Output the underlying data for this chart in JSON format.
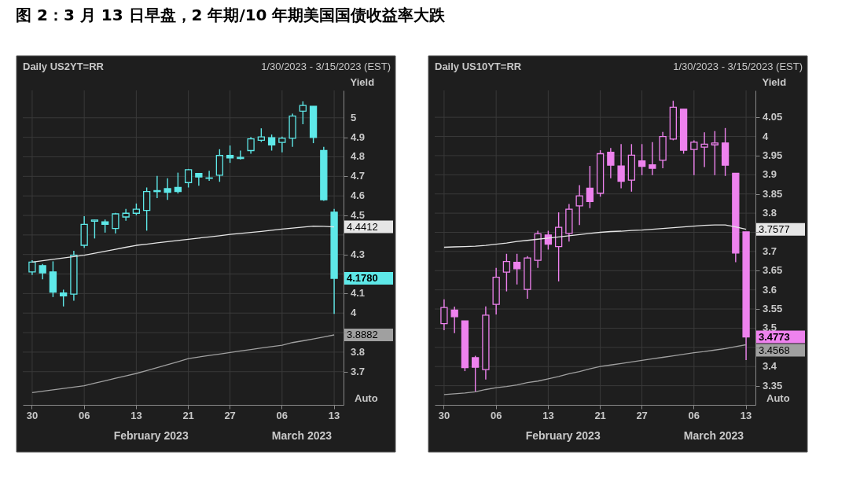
{
  "chart_data": [
    {
      "type": "candlestick",
      "title": "Daily US2YT=RR",
      "subtitle": "1/30/2023 - 3/15/2023 (EST)",
      "ylabel": "Yield",
      "color": "#5ee8e8",
      "grid": true,
      "categories": [
        "30",
        null,
        null,
        null,
        null,
        "06",
        null,
        null,
        null,
        null,
        "13",
        null,
        null,
        null,
        null,
        "21",
        null,
        null,
        null,
        "27",
        null,
        null,
        null,
        null,
        "06",
        null,
        null,
        null,
        null,
        "13"
      ],
      "ylim": [
        3.53,
        5.14
      ],
      "yticks": [
        3.7,
        3.8,
        {
          "value": 3.9,
          "label": null
        },
        4,
        4.1,
        {
          "value": 4.2,
          "label": null
        },
        4.3,
        {
          "value": 4.4,
          "label": null
        },
        4.5,
        4.6,
        4.7,
        4.8,
        4.9,
        5
      ],
      "ohlc": [
        [
          4.211,
          4.271,
          4.195,
          4.261
        ],
        [
          4.243,
          4.251,
          4.173,
          4.206
        ],
        [
          4.211,
          4.265,
          4.082,
          4.107
        ],
        [
          4.103,
          4.12,
          4.034,
          4.088
        ],
        [
          4.097,
          4.319,
          4.063,
          4.296
        ],
        [
          4.347,
          4.496,
          4.334,
          4.454
        ],
        [
          4.47,
          4.477,
          4.382,
          4.476
        ],
        [
          4.467,
          4.479,
          4.412,
          4.454
        ],
        [
          4.433,
          4.513,
          4.407,
          4.508
        ],
        [
          4.492,
          4.533,
          4.473,
          4.511
        ],
        [
          4.511,
          4.561,
          4.501,
          4.532
        ],
        [
          4.526,
          4.643,
          4.422,
          4.622
        ],
        [
          4.627,
          4.702,
          4.589,
          4.622
        ],
        [
          4.637,
          4.69,
          4.58,
          4.618
        ],
        [
          4.643,
          4.719,
          4.612,
          4.622
        ],
        [
          4.668,
          4.738,
          4.643,
          4.734
        ],
        [
          4.715,
          4.715,
          4.652,
          4.697
        ],
        [
          4.692,
          4.728,
          4.677,
          4.69
        ],
        [
          4.706,
          4.839,
          4.672,
          4.807
        ],
        [
          4.807,
          4.858,
          4.769,
          4.794
        ],
        [
          4.797,
          4.832,
          4.786,
          4.791
        ],
        [
          4.832,
          4.902,
          4.816,
          4.892
        ],
        [
          4.885,
          4.946,
          4.876,
          4.902
        ],
        [
          4.898,
          4.914,
          4.832,
          4.861
        ],
        [
          4.874,
          4.904,
          4.823,
          4.895
        ],
        [
          4.895,
          5.021,
          4.851,
          5.009
        ],
        [
          5.034,
          5.084,
          4.967,
          5.063
        ],
        [
          5.059,
          5.059,
          4.87,
          4.899
        ],
        [
          4.832,
          4.851,
          4.574,
          4.58
        ],
        [
          4.517,
          4.533,
          3.996,
          4.178
        ]
      ],
      "series": [
        {
          "type": "line",
          "color": "#e6e6e6",
          "values": [
            4.261,
            4.268,
            4.275,
            4.282,
            4.289,
            4.296,
            4.306,
            4.316,
            4.326,
            4.337,
            4.347,
            4.353,
            4.36,
            4.366,
            4.372,
            4.378,
            4.384,
            4.39,
            4.396,
            4.403,
            4.408,
            4.413,
            4.418,
            4.424,
            4.43,
            4.435,
            4.44,
            4.445,
            4.444,
            4.4412
          ]
        },
        {
          "type": "line",
          "color": "#a0a0a0",
          "values": [
            3.593,
            3.6,
            3.607,
            3.614,
            3.621,
            3.628,
            3.641,
            3.653,
            3.666,
            3.678,
            3.691,
            3.706,
            3.721,
            3.736,
            3.751,
            3.767,
            3.775,
            3.783,
            3.79,
            3.798,
            3.806,
            3.813,
            3.821,
            3.828,
            3.835,
            3.849,
            3.858,
            3.868,
            3.878,
            3.8882
          ]
        }
      ],
      "annotations": [
        "图 2：3 月 13 日早盘，2 年期/10 年期美国国债收益率大跌",
        "February 2023",
        "March 2023",
        "Auto",
        "4.4412",
        "4.1780",
        "3.8882"
      ]
    },
    {
      "type": "candlestick",
      "title": "Daily US10YT=RR",
      "subtitle": "1/30/2023 - 3/15/2023 (EST)",
      "ylabel": "Yield",
      "color": "#ee82ee",
      "grid": true,
      "categories": [
        "30",
        null,
        null,
        null,
        null,
        "06",
        null,
        null,
        null,
        null,
        "13",
        null,
        null,
        null,
        null,
        "21",
        null,
        null,
        null,
        "27",
        null,
        null,
        null,
        null,
        "06",
        null,
        null,
        null,
        null,
        "13"
      ],
      "ylim": [
        3.3,
        4.12
      ],
      "yticks": [
        3.35,
        3.4,
        {
          "value": 3.45,
          "label": null
        },
        3.5,
        3.55,
        3.6,
        3.65,
        3.7,
        {
          "value": 3.75,
          "label": null
        },
        3.8,
        3.85,
        3.9,
        3.95,
        4,
        4.05
      ],
      "ohlc": [
        [
          3.512,
          3.575,
          3.495,
          3.554
        ],
        [
          3.547,
          3.556,
          3.487,
          3.53
        ],
        [
          3.519,
          3.519,
          3.388,
          3.397
        ],
        [
          3.423,
          3.428,
          3.335,
          3.398
        ],
        [
          3.392,
          3.557,
          3.366,
          3.534
        ],
        [
          3.562,
          3.657,
          3.536,
          3.633
        ],
        [
          3.646,
          3.694,
          3.596,
          3.674
        ],
        [
          3.672,
          3.694,
          3.614,
          3.655
        ],
        [
          3.601,
          3.688,
          3.577,
          3.683
        ],
        [
          3.677,
          3.754,
          3.657,
          3.746
        ],
        [
          3.743,
          3.754,
          3.705,
          3.719
        ],
        [
          3.713,
          3.802,
          3.622,
          3.763
        ],
        [
          3.747,
          3.824,
          3.726,
          3.81
        ],
        [
          3.819,
          3.873,
          3.769,
          3.845
        ],
        [
          3.865,
          3.923,
          3.813,
          3.83
        ],
        [
          3.852,
          3.964,
          3.843,
          3.955
        ],
        [
          3.959,
          3.97,
          3.891,
          3.925
        ],
        [
          3.923,
          3.98,
          3.865,
          3.883
        ],
        [
          3.886,
          3.98,
          3.856,
          3.951
        ],
        [
          3.936,
          3.98,
          3.899,
          3.922
        ],
        [
          3.926,
          3.985,
          3.899,
          3.917
        ],
        [
          3.938,
          4.012,
          3.917,
          4.0
        ],
        [
          3.993,
          4.093,
          3.99,
          4.076
        ],
        [
          4.071,
          4.071,
          3.955,
          3.964
        ],
        [
          3.966,
          3.99,
          3.899,
          3.985
        ],
        [
          3.972,
          4.011,
          3.92,
          3.98
        ],
        [
          3.978,
          4.014,
          3.899,
          3.983
        ],
        [
          3.983,
          4.022,
          3.897,
          3.925
        ],
        [
          3.904,
          3.904,
          3.672,
          3.696
        ],
        [
          3.751,
          3.751,
          3.417,
          3.4773
        ]
      ],
      "series": [
        {
          "type": "line",
          "color": "#e6e6e6",
          "values": [
            3.711,
            3.712,
            3.713,
            3.714,
            3.716,
            3.719,
            3.722,
            3.726,
            3.729,
            3.732,
            3.735,
            3.738,
            3.741,
            3.744,
            3.747,
            3.75,
            3.752,
            3.753,
            3.755,
            3.756,
            3.758,
            3.76,
            3.762,
            3.764,
            3.766,
            3.768,
            3.769,
            3.769,
            3.764,
            3.7577
          ]
        },
        {
          "type": "line",
          "color": "#a0a0a0",
          "values": [
            3.327,
            3.329,
            3.331,
            3.334,
            3.34,
            3.345,
            3.348,
            3.352,
            3.358,
            3.362,
            3.368,
            3.374,
            3.381,
            3.387,
            3.394,
            3.4,
            3.404,
            3.408,
            3.412,
            3.416,
            3.42,
            3.424,
            3.428,
            3.432,
            3.436,
            3.439,
            3.443,
            3.447,
            3.452,
            3.4568
          ]
        }
      ],
      "annotations": [
        "February 2023",
        "March 2023",
        "Auto",
        "3.7577",
        "3.4773",
        "3.4568"
      ]
    }
  ]
}
